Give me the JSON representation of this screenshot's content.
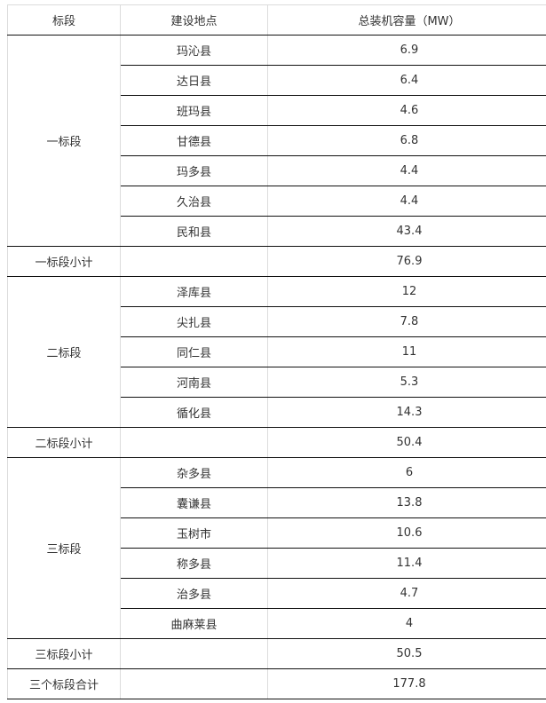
{
  "header": {
    "section": "标段",
    "location": "建设地点",
    "capacity": "总装机容量（MW）"
  },
  "groups": [
    {
      "section": "一标段",
      "rows": [
        {
          "location": "玛沁县",
          "capacity": "6.9"
        },
        {
          "location": "达日县",
          "capacity": "6.4"
        },
        {
          "location": "班玛县",
          "capacity": "4.6"
        },
        {
          "location": "甘德县",
          "capacity": "6.8"
        },
        {
          "location": "玛多县",
          "capacity": "4.4"
        },
        {
          "location": "久治县",
          "capacity": "4.4"
        },
        {
          "location": "民和县",
          "capacity": "43.4"
        }
      ],
      "subtotal_label": "一标段小计",
      "subtotal": "76.9"
    },
    {
      "section": "二标段",
      "rows": [
        {
          "location": "泽库县",
          "capacity": "12"
        },
        {
          "location": "尖扎县",
          "capacity": "7.8"
        },
        {
          "location": "同仁县",
          "capacity": "11"
        },
        {
          "location": "河南县",
          "capacity": "5.3"
        },
        {
          "location": "循化县",
          "capacity": "14.3"
        }
      ],
      "subtotal_label": "二标段小计",
      "subtotal": "50.4"
    },
    {
      "section": "三标段",
      "rows": [
        {
          "location": "杂多县",
          "capacity": "6"
        },
        {
          "location": "囊谦县",
          "capacity": "13.8"
        },
        {
          "location": "玉树市",
          "capacity": "10.6"
        },
        {
          "location": "称多县",
          "capacity": "11.4"
        },
        {
          "location": "治多县",
          "capacity": "4.7"
        },
        {
          "location": "曲麻莱县",
          "capacity": "4"
        }
      ],
      "subtotal_label": "三标段小计",
      "subtotal": "50.5"
    }
  ],
  "total": {
    "label": "三个标段合计",
    "value": "177.8"
  }
}
